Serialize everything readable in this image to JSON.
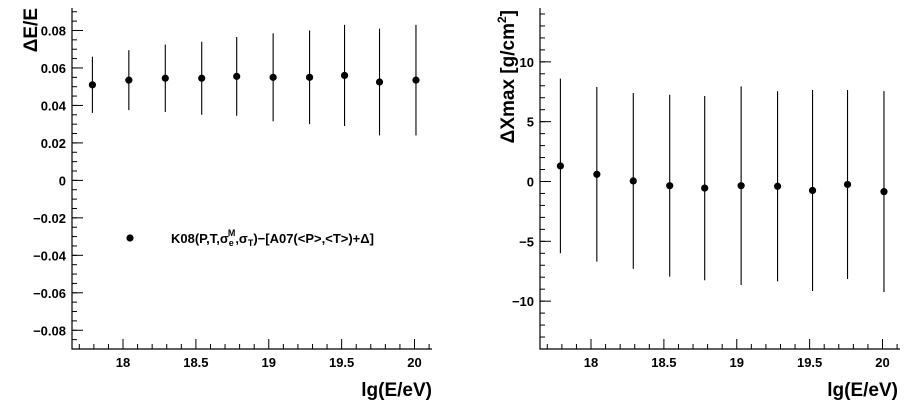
{
  "chart_data": [
    {
      "type": "scatter",
      "x": [
        17.79,
        18.04,
        18.29,
        18.54,
        18.78,
        19.03,
        19.28,
        19.52,
        19.76,
        20.01
      ],
      "series": [
        {
          "name": "K08(P,T,σ_e^M,σ_T)−[A07(<P>,<T>)+Δ]",
          "values": [
            0.051,
            0.0535,
            0.0545,
            0.0545,
            0.0555,
            0.055,
            0.055,
            0.056,
            0.0525,
            0.0535
          ],
          "errors": [
            0.015,
            0.016,
            0.018,
            0.0195,
            0.021,
            0.0235,
            0.025,
            0.027,
            0.0285,
            0.0295
          ]
        }
      ],
      "xlabel": "lg(E/eV)",
      "ylabel": "ΔE/E",
      "xlim": [
        17.65,
        20.12
      ],
      "ylim": [
        -0.09,
        0.092
      ],
      "xticks": [
        "18",
        "18.5",
        "19",
        "19.5",
        "20"
      ],
      "yticks": [
        "0.08",
        "0.06",
        "0.04",
        "0.02",
        "0",
        "−0.02",
        "−0.04",
        "−0.06",
        "−0.08"
      ],
      "legend": {
        "placement": "lower-right",
        "label_main": "K08(P,T,σ",
        "label_e": "e",
        "label_M": "M",
        "label_sep": ",σ",
        "label_T": "T",
        "label_tail": ")−[A07(<P>,<T>)+Δ]"
      }
    },
    {
      "type": "scatter",
      "x": [
        17.79,
        18.04,
        18.29,
        18.54,
        18.78,
        19.03,
        19.28,
        19.52,
        19.76,
        20.01
      ],
      "series": [
        {
          "values": [
            1.3,
            0.6,
            0.05,
            -0.35,
            -0.55,
            -0.35,
            -0.4,
            -0.75,
            -0.25,
            -0.85
          ],
          "errors": [
            7.3,
            7.3,
            7.35,
            7.6,
            7.7,
            8.3,
            7.95,
            8.4,
            7.9,
            8.4
          ]
        }
      ],
      "xlabel": "lg(E/eV)",
      "ylabel": "ΔXmax [g/cm²]",
      "ylabel_main": "ΔXmax [g/cm",
      "ylabel_sup": "2",
      "ylabel_end": "]",
      "xlim": [
        17.65,
        20.12
      ],
      "ylim": [
        -14,
        14.5
      ],
      "xticks": [
        "18",
        "18.5",
        "19",
        "19.5",
        "20"
      ],
      "yticks": [
        "10",
        "5",
        "0",
        "−5",
        "−10"
      ]
    }
  ]
}
